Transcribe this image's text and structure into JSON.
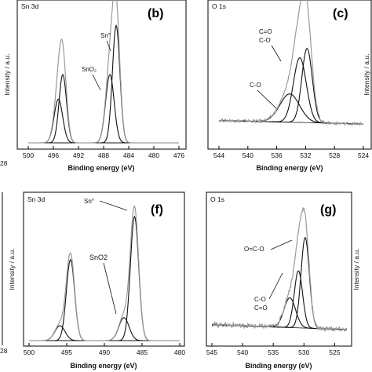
{
  "panels": [
    {
      "label": "(b)",
      "region": "Sn 3d",
      "xlabel": "Binding energy (eV)",
      "ylabel": "Intensity / a.u.",
      "xticks": [
        "500",
        "496",
        "492",
        "488",
        "484",
        "480",
        "476"
      ],
      "annotations": [
        "Sn°",
        "SnO₂"
      ]
    },
    {
      "label": "(c)",
      "region": "O 1s",
      "xlabel": "Binding energy (eV)",
      "ylabel": "Intensity / a.u.",
      "xticks": [
        "544",
        "540",
        "536",
        "532",
        "528",
        "524"
      ],
      "annotations": [
        "C=O",
        "C-O",
        "C-O"
      ]
    },
    {
      "label": "(f)",
      "region": "Sn 3d",
      "xlabel": "Binding energy (eV)",
      "ylabel": "Intensity / a.u.",
      "xticks": [
        "500",
        "495",
        "490",
        "485",
        "480"
      ],
      "annotations": [
        "Sn°",
        "SnO2"
      ]
    },
    {
      "label": "(g)",
      "region": "O 1s",
      "xlabel": "Binding energy (eV)",
      "ylabel": "Intensity / a.u.",
      "xticks": [
        "545",
        "540",
        "535",
        "530",
        "525"
      ],
      "annotations": [
        "O=C-O",
        "C-O",
        "C=O"
      ]
    }
  ],
  "edge_fragments": [
    "28",
    "28"
  ],
  "chart_data": [
    {
      "type": "line",
      "title": "Sn 3d",
      "xlabel": "Binding energy (eV)",
      "ylabel": "Intensity / a.u.",
      "xlim": [
        500,
        476
      ],
      "x_reversed": true,
      "peaks": [
        {
          "label": "Sn°",
          "center": 486.0,
          "height": 0.86,
          "fwhm": 1.4
        },
        {
          "label": "SnO₂",
          "center": 487.0,
          "height": 0.5,
          "fwhm": 1.6
        },
        {
          "label": "Sn°",
          "center": 494.5,
          "height": 0.5,
          "fwhm": 1.4
        },
        {
          "label": "SnO₂",
          "center": 495.2,
          "height": 0.32,
          "fwhm": 1.6
        }
      ]
    },
    {
      "type": "line",
      "title": "O 1s",
      "xlabel": "Binding energy (eV)",
      "ylabel": "Intensity / a.u.",
      "xlim": [
        544,
        524
      ],
      "x_reversed": true,
      "peaks": [
        {
          "label": "C-O",
          "center": 531.8,
          "height": 0.63,
          "fwhm": 1.7
        },
        {
          "label": "C=O",
          "center": 532.8,
          "height": 0.55,
          "fwhm": 2.1
        },
        {
          "label": "C-O",
          "center": 534.2,
          "height": 0.24,
          "fwhm": 3.2
        }
      ]
    },
    {
      "type": "line",
      "title": "Sn 3d",
      "xlabel": "Binding energy (eV)",
      "ylabel": "Intensity / a.u.",
      "xlim": [
        500,
        480
      ],
      "x_reversed": true,
      "peaks": [
        {
          "label": "Sn°",
          "center": 486.0,
          "height": 0.92,
          "fwhm": 1.3
        },
        {
          "label": "SnO2",
          "center": 487.4,
          "height": 0.17,
          "fwhm": 1.6
        },
        {
          "label": "Sn°",
          "center": 494.5,
          "height": 0.6,
          "fwhm": 1.3
        },
        {
          "label": "SnO2",
          "center": 495.9,
          "height": 0.11,
          "fwhm": 1.6
        }
      ]
    },
    {
      "type": "line",
      "title": "O 1s",
      "xlabel": "Binding energy (eV)",
      "ylabel": "Intensity / a.u.",
      "xlim": [
        545,
        523
      ],
      "x_reversed": true,
      "peaks": [
        {
          "label": "O=C-O",
          "center": 529.8,
          "height": 0.73,
          "fwhm": 1.6
        },
        {
          "label": "C-O",
          "center": 530.9,
          "height": 0.46,
          "fwhm": 1.6
        },
        {
          "label": "C=O",
          "center": 532.3,
          "height": 0.24,
          "fwhm": 2.2
        }
      ]
    }
  ]
}
